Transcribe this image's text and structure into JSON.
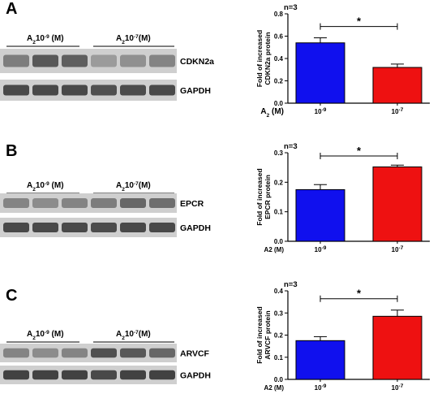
{
  "colors": {
    "low_dose_bar": "#1010ee",
    "high_dose_bar": "#ee1111",
    "blot_bg": "#cfcfcf",
    "band": "#3a3a3a"
  },
  "panels": [
    {
      "letter": "A",
      "group1": {
        "base": "A",
        "sub": "2",
        "num": "10",
        "sup": "-9",
        "unit": " (M)"
      },
      "group2": {
        "base": "A",
        "sub": "2",
        "num": "10",
        "sup": "-7",
        "unit": "(M)"
      },
      "blots": [
        "CDKN2a",
        "GAPDH"
      ]
    },
    {
      "letter": "B",
      "group1": {
        "base": "A",
        "sub": "2",
        "num": "10",
        "sup": "-9",
        "unit": " (M)"
      },
      "group2": {
        "base": "A",
        "sub": "2",
        "num": "10",
        "sup": "-7",
        "unit": "(M)"
      },
      "blots": [
        "EPCR",
        "GAPDH"
      ]
    },
    {
      "letter": "C",
      "group1": {
        "base": "A",
        "sub": "2",
        "num": "10",
        "sup": "-9",
        "unit": " (M)"
      },
      "group2": {
        "base": "A",
        "sub": "2",
        "num": "10",
        "sup": "-7",
        "unit": "(M)"
      },
      "blots": [
        "ARVCF",
        "GAPDH"
      ]
    }
  ],
  "chart_data": [
    {
      "type": "bar",
      "n_label": "n=3",
      "ylabel_lines": [
        "Fold of increased",
        "CDKN2a protein"
      ],
      "ylim": [
        0,
        0.8
      ],
      "yticks": [
        "0.0",
        "0.2",
        "0.4",
        "0.6",
        "0.8"
      ],
      "xaxis_label": {
        "base": "A",
        "sub": "2",
        "unit": " (M)"
      },
      "categories": [
        {
          "num": "10",
          "sup": "-9"
        },
        {
          "num": "10",
          "sup": "-7"
        }
      ],
      "values": [
        0.54,
        0.32
      ],
      "errors": [
        0.045,
        0.03
      ],
      "significance": "*"
    },
    {
      "type": "bar",
      "n_label": "n=3",
      "ylabel_lines": [
        "Fold of increased",
        "EPCR protein"
      ],
      "ylim": [
        0,
        0.3
      ],
      "yticks": [
        "0.0",
        "0.1",
        "0.2",
        "0.3"
      ],
      "xaxis_label": {
        "base": "A2",
        "sub": "",
        "unit": " (M)"
      },
      "categories": [
        {
          "num": "10",
          "sup": "-9"
        },
        {
          "num": "10",
          "sup": "-7"
        }
      ],
      "values": [
        0.175,
        0.252
      ],
      "errors": [
        0.017,
        0.006
      ],
      "significance": "*"
    },
    {
      "type": "bar",
      "n_label": "n=3",
      "ylabel_lines": [
        "Fold of increased",
        "ARVCF protein"
      ],
      "ylim": [
        0,
        0.4
      ],
      "yticks": [
        "0.0",
        "0.1",
        "0.2",
        "0.3",
        "0.4"
      ],
      "xaxis_label": {
        "base": "A2",
        "sub": "",
        "unit": " (M)"
      },
      "categories": [
        {
          "num": "10",
          "sup": "-9"
        },
        {
          "num": "10",
          "sup": "-7"
        }
      ],
      "values": [
        0.175,
        0.285
      ],
      "errors": [
        0.018,
        0.028
      ],
      "significance": "*"
    }
  ]
}
